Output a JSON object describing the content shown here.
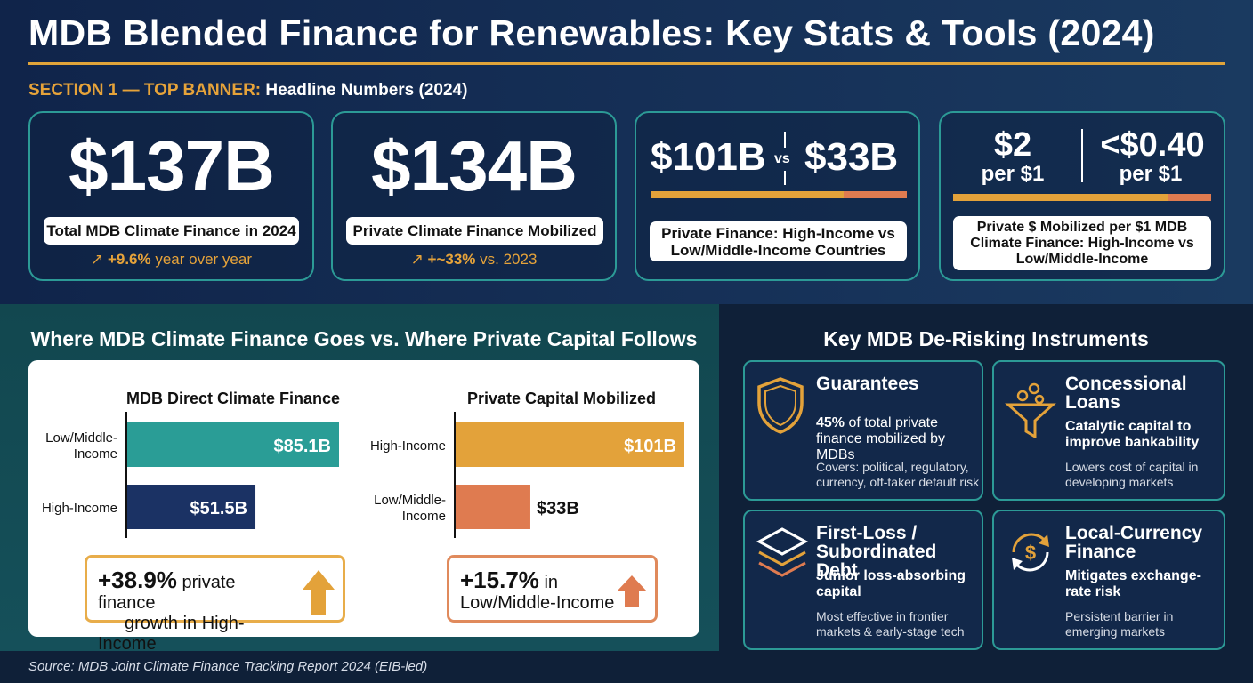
{
  "title": "MDB Blended Finance for Renewables: Key Stats & Tools (2024)",
  "section1": {
    "label_accent": "SECTION 1 — TOP BANNER:",
    "label_rest": "Headline Numbers (2024)"
  },
  "cards": {
    "c1": {
      "value": "$137B",
      "label": "Total MDB Climate Finance in 2024",
      "trend_prefix": "↗ ",
      "trend_bold": "+9.6%",
      "trend_rest": " year over year"
    },
    "c2": {
      "value": "$134B",
      "label": "Private Climate Finance Mobilized",
      "trend_prefix": "↗ ",
      "trend_bold": "+~33%",
      "trend_rest": " vs. 2023"
    },
    "c3": {
      "left": "$101B",
      "vs": "vs",
      "right": "$33B",
      "label": "Private Finance: High-Income vs Low/Middle-Income Countries",
      "split": [
        101,
        33
      ]
    },
    "c4": {
      "left_big": "$2",
      "left_small": "per $1",
      "right_big": "<$0.40",
      "right_small": "per $1",
      "label": "Private $ Mobilized per $1 MDB Climate Finance: High-Income vs Low/Middle-Income",
      "split": [
        2,
        0.4
      ]
    }
  },
  "section2": {
    "title": "Where MDB Climate Finance Goes vs. Where Private Capital Follows"
  },
  "section3": {
    "title": "Key MDB De-Risking Instruments"
  },
  "colors": {
    "teal": "#2a9d96",
    "navy": "#1b3264",
    "gold": "#e3a23a",
    "coral": "#df7b50"
  },
  "chart_data": [
    {
      "type": "bar",
      "orientation": "horizontal",
      "title": "MDB Direct Climate Finance",
      "categories": [
        "Low/Middle-Income",
        "High-Income"
      ],
      "values": [
        85.1,
        51.5
      ],
      "value_labels": [
        "$85.1B",
        "$51.5B"
      ],
      "colors": [
        "#2a9d96",
        "#1b3264"
      ],
      "xlim": [
        0,
        85.1
      ],
      "grid": false
    },
    {
      "type": "bar",
      "orientation": "horizontal",
      "title": "Private Capital Mobilized",
      "categories": [
        "High-Income",
        "Low/Middle-Income"
      ],
      "values": [
        101,
        33
      ],
      "value_labels": [
        "$101B",
        "$33B"
      ],
      "colors": [
        "#e3a23a",
        "#df7b50"
      ],
      "xlim": [
        0,
        101
      ],
      "grid": false
    }
  ],
  "callouts": {
    "left": {
      "pct": "+38.9%",
      "text1": " private finance",
      "text2": "growth in High-Income"
    },
    "right": {
      "pct": "+15.7%",
      "text1": " in",
      "text2": "Low/Middle-Income"
    }
  },
  "instruments": [
    {
      "icon": "shield-icon",
      "title1": "Guarantees",
      "title2": "",
      "sub_bold": "45%",
      "sub_rest": " of total private finance mobilized by MDBs",
      "desc": "Covers: political, regulatory, currency, off-taker default risk"
    },
    {
      "icon": "funnel-coins-icon",
      "title1": "Concessional",
      "title2": "Loans",
      "sub_bold": "Catalytic capital to improve bankability",
      "sub_rest": "",
      "desc": "Lowers cost of capital in developing markets"
    },
    {
      "icon": "layers-icon",
      "title1": "First-Loss /",
      "title2": "Subordinated Debt",
      "sub_bold": "Junior loss-absorbing capital",
      "sub_rest": "",
      "desc": "Most effective in frontier markets & early-stage tech"
    },
    {
      "icon": "currency-exchange-icon",
      "title1": "Local-Currency",
      "title2": "Finance",
      "sub_bold": "Mitigates exchange-rate risk",
      "sub_rest": "",
      "desc": "Persistent barrier in emerging markets"
    }
  ],
  "source": "Source: MDB Joint Climate Finance Tracking Report 2024 (EIB-led)"
}
